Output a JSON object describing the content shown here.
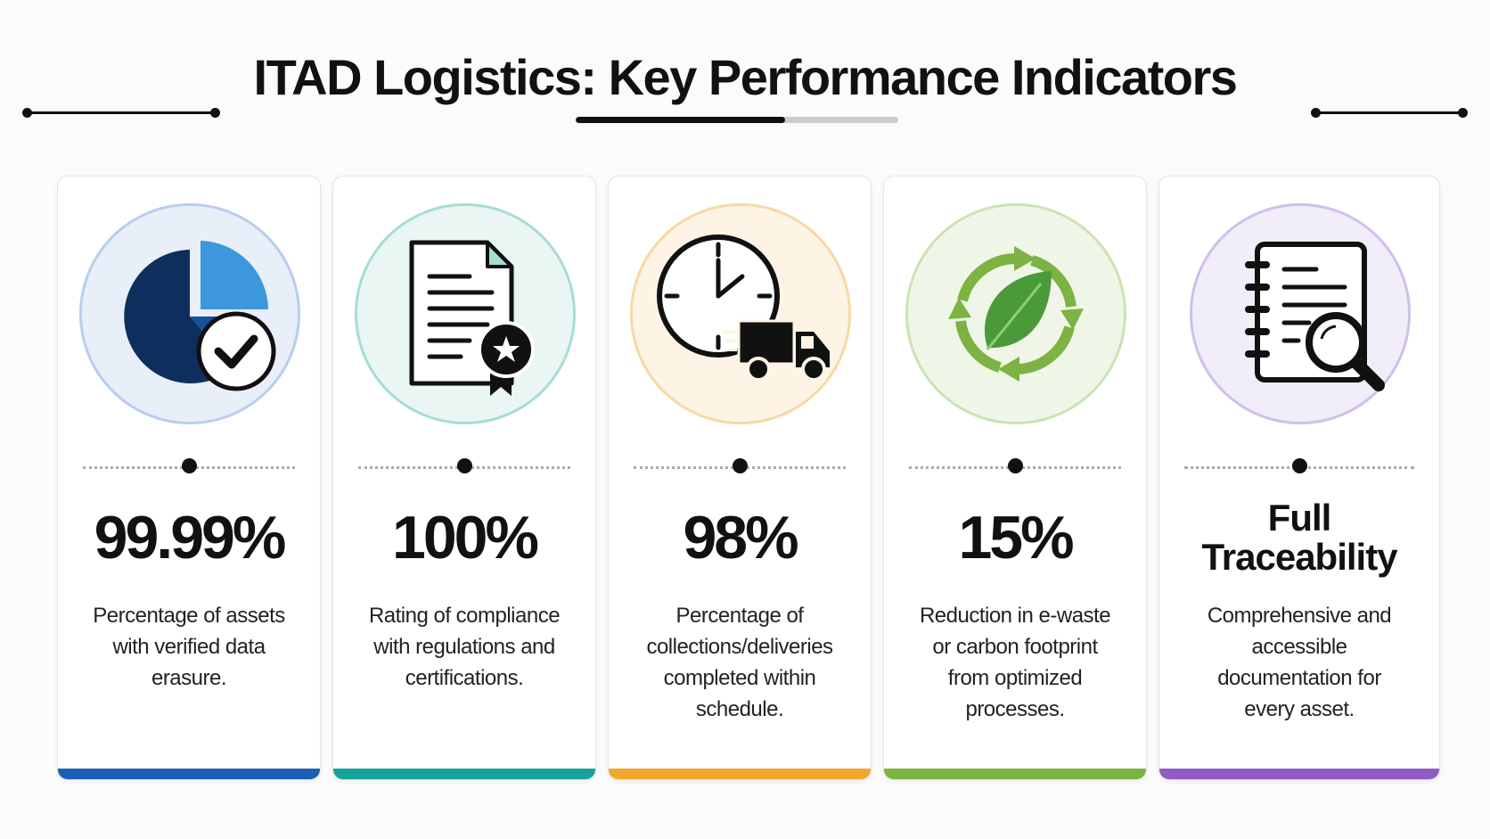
{
  "header": {
    "title": "ITAD Logistics: Key Performance Indicators"
  },
  "cards": [
    {
      "value": "99.99%",
      "description": "Percentage of assets with verified data erasure."
    },
    {
      "value": "100%",
      "description": "Rating of compliance with regulations and certifications."
    },
    {
      "value": "98%",
      "description": "Percentage of collections/deliveries completed within schedule."
    },
    {
      "value": "15%",
      "description": "Reduction in e-waste or carbon footprint from optimized processes."
    },
    {
      "value": "Full Traceability",
      "description": "Comprehensive and accessible documentation for every asset."
    }
  ]
}
